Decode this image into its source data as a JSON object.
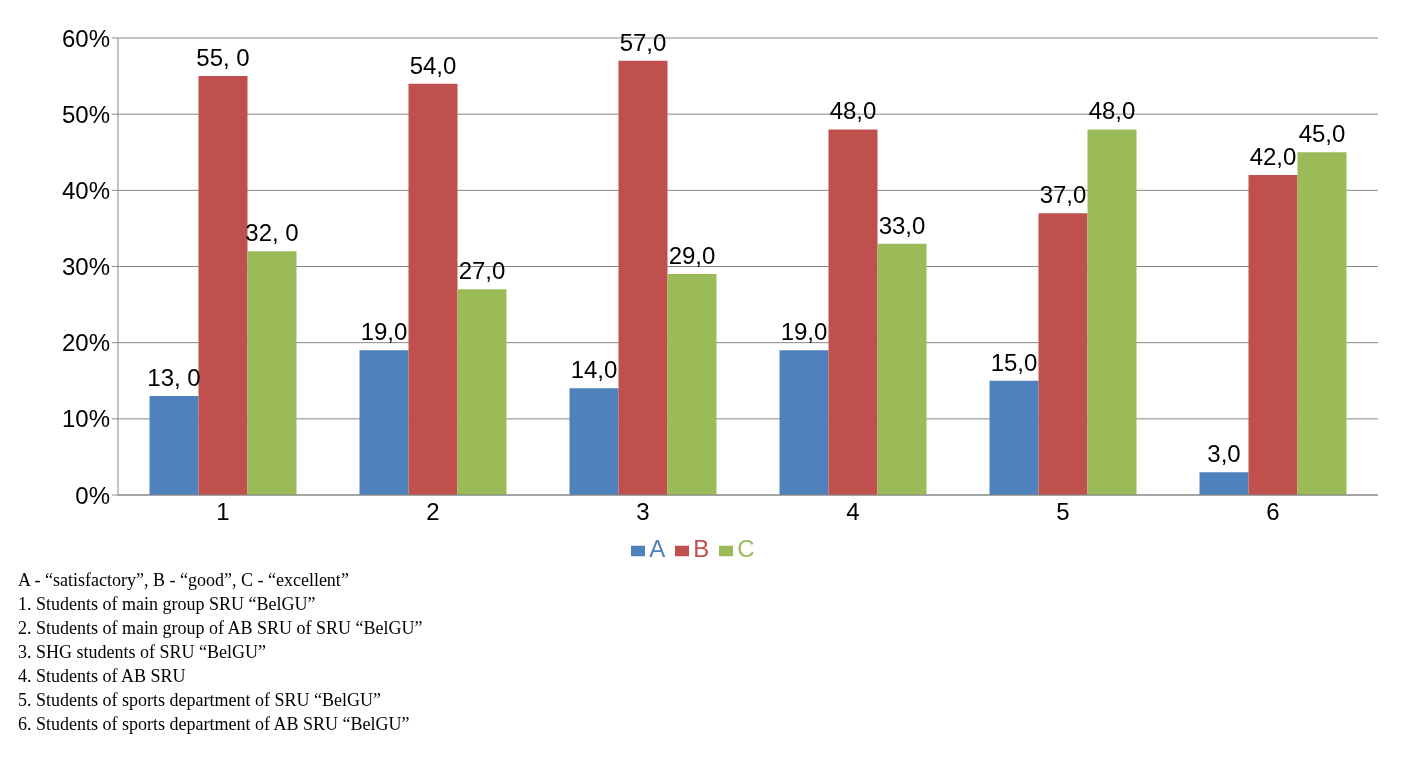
{
  "chart_data": {
    "type": "bar",
    "categories": [
      "1",
      "2",
      "3",
      "4",
      "5",
      "6"
    ],
    "series": [
      {
        "name": "A",
        "color": "#4f81bd",
        "values": [
          13,
          19,
          14,
          19,
          15,
          3
        ],
        "value_labels": [
          "13, 0",
          "19,0",
          "14,0",
          "19,0",
          "15,0",
          "3,0"
        ]
      },
      {
        "name": "B",
        "color": "#c0504d",
        "values": [
          55,
          54,
          57,
          48,
          37,
          42
        ],
        "value_labels": [
          "55, 0",
          "54,0",
          "57,0",
          "48,0",
          "37,0",
          "42,0"
        ]
      },
      {
        "name": "C",
        "color": "#9bbb59",
        "values": [
          32,
          27,
          29,
          33,
          48,
          45
        ],
        "value_labels": [
          "32, 0",
          "27,0",
          "29,0",
          "33,0",
          "48,0",
          "45,0"
        ]
      }
    ],
    "ylim": [
      0,
      60
    ],
    "yticks": [
      {
        "value": 0,
        "label": "0%"
      },
      {
        "value": 10,
        "label": "10%"
      },
      {
        "value": 20,
        "label": "20%"
      },
      {
        "value": 30,
        "label": "30%"
      },
      {
        "value": 40,
        "label": "40%"
      },
      {
        "value": 50,
        "label": "50%"
      },
      {
        "value": 60,
        "label": "60%"
      }
    ],
    "grid": "y",
    "legend": "bottom",
    "annotations": [
      "A - “satisfactory”, B - “good”, C - “excellent”",
      "1. Students of main group SRU “BelGU”",
      "2. Students of main group of AB SRU of SRU “BelGU”",
      "3. SHG students of SRU “BelGU”",
      "4. Students of AB SRU",
      "5. Students of sports department of SRU “BelGU”",
      "6. Students of sports department of AB SRU “BelGU”"
    ]
  }
}
